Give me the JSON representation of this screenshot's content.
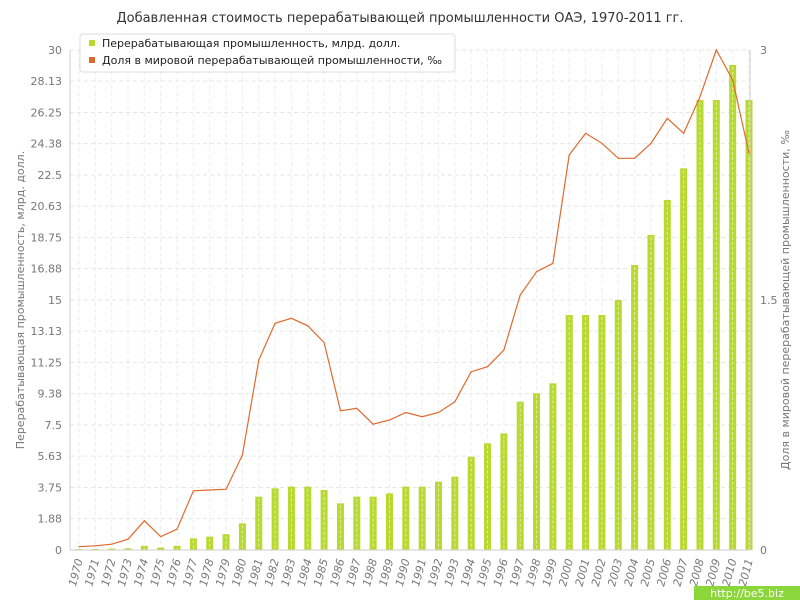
{
  "chart_data": {
    "type": "bar",
    "title": "Добавленная стоимость перерабатывающей промышленности ОАЭ, 1970-2011 гг.",
    "categories": [
      "1970",
      "1971",
      "1972",
      "1973",
      "1974",
      "1975",
      "1976",
      "1977",
      "1978",
      "1979",
      "1980",
      "1981",
      "1982",
      "1983",
      "1984",
      "1985",
      "1986",
      "1987",
      "1988",
      "1989",
      "1990",
      "1991",
      "1992",
      "1993",
      "1994",
      "1995",
      "1996",
      "1997",
      "1998",
      "1999",
      "2000",
      "2001",
      "2002",
      "2003",
      "2004",
      "2005",
      "2006",
      "2007",
      "2008",
      "2009",
      "2010",
      "2011"
    ],
    "ylabel_left": "Перерабатывающая промышленность, млрд. долл.",
    "ylabel_right": "Доля в мировой перерабатывающей промышленности, ‰",
    "y_left_ticks": [
      "0",
      "1.88",
      "3.75",
      "5.63",
      "7.5",
      "9.38",
      "11.25",
      "13.13",
      "15",
      "16.88",
      "18.75",
      "20.63",
      "22.5",
      "24.38",
      "26.25",
      "28.13",
      "30"
    ],
    "y_right_ticks": [
      "0",
      "1.5",
      "3"
    ],
    "ylim_left": [
      0,
      30
    ],
    "ylim_right": [
      0,
      3
    ],
    "grid": true,
    "legend_position": "top-left",
    "series": [
      {
        "name": "Перерабатывающая промышленность, млрд. долл.",
        "type": "bar",
        "axis": "left",
        "color": "#b8d930",
        "values": [
          0.05,
          0.06,
          0.08,
          0.1,
          0.25,
          0.15,
          0.25,
          0.7,
          0.8,
          0.95,
          1.6,
          3.2,
          3.7,
          3.8,
          3.8,
          3.6,
          2.8,
          3.2,
          3.2,
          3.4,
          3.8,
          3.8,
          4.1,
          4.4,
          5.6,
          6.4,
          7.0,
          8.9,
          9.4,
          10.0,
          14.1,
          14.1,
          14.1,
          15.0,
          17.1,
          18.9,
          21.0,
          22.9,
          27.0,
          27.0,
          29.1,
          27.0
        ]
      },
      {
        "name": "Доля в мировой перерабатывающей промышленности, ‰",
        "type": "line",
        "axis": "right",
        "color": "#e06a2e",
        "values": [
          0.02,
          0.025,
          0.035,
          0.065,
          0.175,
          0.08,
          0.125,
          0.355,
          0.36,
          0.365,
          0.57,
          1.14,
          1.36,
          1.39,
          1.345,
          1.245,
          0.835,
          0.85,
          0.755,
          0.78,
          0.825,
          0.8,
          0.825,
          0.89,
          1.07,
          1.1,
          1.2,
          1.53,
          1.67,
          1.72,
          2.37,
          2.5,
          2.44,
          2.35,
          2.35,
          2.44,
          2.59,
          2.5,
          2.72,
          3.0,
          2.82,
          2.38
        ]
      }
    ]
  },
  "watermark": "http://be5.biz"
}
